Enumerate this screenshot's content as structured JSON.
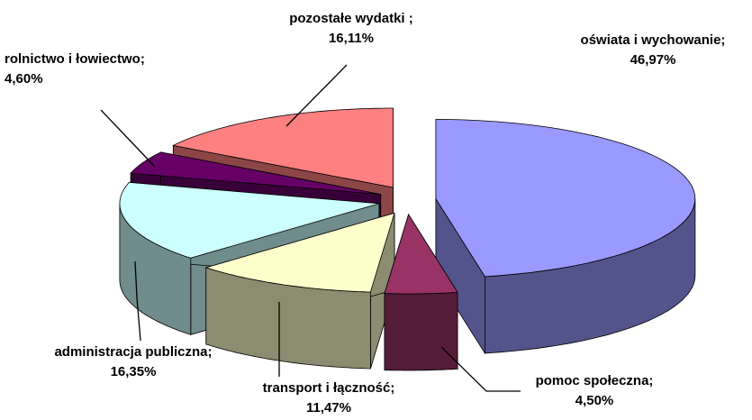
{
  "chart_data": {
    "type": "pie3d",
    "categories": [
      "oświata i wychowanie;",
      "pomoc społeczna;",
      "transport i łączność;",
      "administracja publiczna;",
      "rolnictwo i łowiectwo;",
      "pozostałe wydatki ;"
    ],
    "values": [
      46.97,
      4.5,
      11.47,
      16.35,
      4.6,
      16.11
    ],
    "value_labels": [
      "46,97%",
      "4,50%",
      "11,47%",
      "16,35%",
      "4,60%",
      "16,11%"
    ],
    "colors": [
      "#9999ff",
      "#993366",
      "#ffffcc",
      "#ccffff",
      "#660066",
      "#ff8080"
    ]
  }
}
